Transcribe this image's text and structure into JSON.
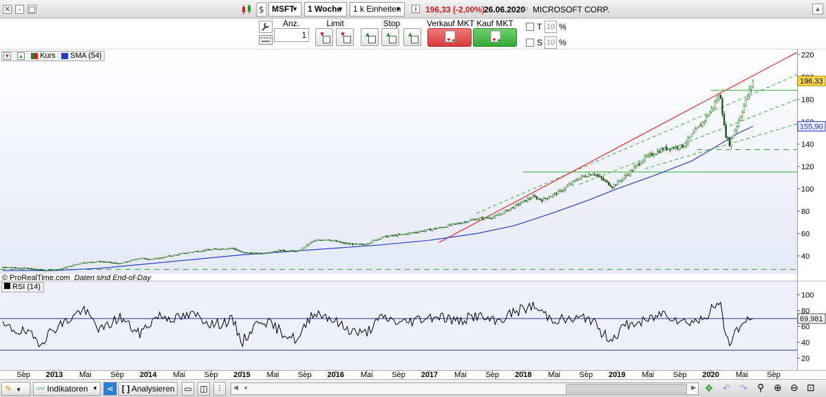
{
  "toolbar": {
    "symbol": "MSFT",
    "timeframe": "1 Woche",
    "units": "1 k Einheiten",
    "info_icon": "info-icon",
    "price_change": "196,33 (-2,00%)",
    "date": "26.06.2020",
    "instrument_name": "MICROSOFT CORP."
  },
  "order_panel": {
    "qty_label": "Anz.",
    "qty_value": "1",
    "limit_label": "Limit",
    "stop_label": "Stop",
    "sell_label": "Verkauf MKT",
    "buy_label": "Kauf MKT",
    "t_label": "T",
    "t_value": "10",
    "t_unit": "%",
    "s_label": "S",
    "s_value": "10",
    "s_unit": "%"
  },
  "legend": {
    "price_label": "Kurs",
    "sma_label": "SMA (54)",
    "source_label": "© ProRealTime.com",
    "eod_label": "Daten sind End-of-Day",
    "rsi_label": "RSI (14)"
  },
  "colors": {
    "price": "#2e7d1e",
    "sma": "#2a3fc7",
    "trend": "#e53935",
    "support": "#33aa33",
    "rsi": "#000000",
    "rsi_band": "#2a3580",
    "panel_bg": "#eef1fb"
  },
  "chart_data": [
    {
      "type": "line",
      "title": "",
      "xlabel": "",
      "ylabel": "",
      "x_ticks": [
        "Sep",
        "2013",
        "Mai",
        "Sep",
        "2014",
        "Mai",
        "Sep",
        "2015",
        "Mai",
        "Sep",
        "2016",
        "Mai",
        "Sep",
        "2017",
        "Mai",
        "Sep",
        "2018",
        "Mai",
        "Sep",
        "2019",
        "Mai",
        "Sep",
        "2020",
        "Mai",
        "Sep"
      ],
      "y_ticks": [
        40,
        60,
        80,
        100,
        120,
        140,
        160,
        180,
        200,
        220
      ],
      "ylim": [
        24,
        222
      ],
      "xlim": [
        2012.42,
        2020.92
      ],
      "grid": false,
      "series": [
        {
          "name": "Kurs",
          "x": [
            2012.45,
            2012.7,
            2012.9,
            2013.05,
            2013.3,
            2013.5,
            2013.7,
            2013.9,
            2014.05,
            2014.3,
            2014.5,
            2014.7,
            2014.9,
            2015.0,
            2015.2,
            2015.4,
            2015.6,
            2015.75,
            2015.9,
            2016.1,
            2016.3,
            2016.5,
            2016.7,
            2016.9,
            2017.1,
            2017.3,
            2017.5,
            2017.7,
            2017.9,
            2018.1,
            2018.2,
            2018.4,
            2018.6,
            2018.75,
            2018.85,
            2018.95,
            2019.1,
            2019.3,
            2019.5,
            2019.7,
            2019.9,
            2020.0,
            2020.1,
            2020.15,
            2020.2,
            2020.3,
            2020.4,
            2020.45
          ],
          "values": [
            30,
            29,
            27,
            28,
            34,
            35,
            33,
            38,
            37,
            41,
            44,
            46,
            47,
            43,
            42,
            45,
            44,
            53,
            55,
            51,
            50,
            57,
            59,
            62,
            65,
            69,
            73,
            75,
            84,
            93,
            90,
            98,
            110,
            114,
            108,
            102,
            112,
            128,
            136,
            138,
            158,
            170,
            185,
            150,
            140,
            162,
            185,
            196.33
          ]
        },
        {
          "name": "SMA (54)",
          "x": [
            2012.45,
            2013.0,
            2013.5,
            2014.0,
            2014.5,
            2015.0,
            2015.5,
            2016.0,
            2016.5,
            2017.0,
            2017.5,
            2017.9,
            2018.3,
            2018.7,
            2019.0,
            2019.4,
            2019.8,
            2020.1,
            2020.3,
            2020.45
          ],
          "values": [
            27,
            27,
            29,
            33,
            37,
            41,
            44,
            47,
            50,
            54,
            60,
            67,
            78,
            90,
            100,
            112,
            125,
            140,
            150,
            155.9
          ]
        }
      ],
      "annotations": [
        {
          "label": "196,33",
          "y": 196.33
        },
        {
          "label": "155,90",
          "y": 155.9
        },
        {
          "kind": "horizontal",
          "y": 188
        },
        {
          "kind": "horizontal",
          "y": 115
        },
        {
          "kind": "horizontal",
          "y": 135
        },
        {
          "kind": "horizontal",
          "y": 28
        }
      ]
    },
    {
      "type": "line",
      "title": "",
      "y_ticks": [
        20,
        40,
        60,
        80,
        100
      ],
      "ylim": [
        10,
        110
      ],
      "series": [
        {
          "name": "RSI (14)",
          "x": [
            2012.45,
            2012.7,
            2012.85,
            2013.0,
            2013.15,
            2013.3,
            2013.5,
            2013.7,
            2013.9,
            2014.1,
            2014.3,
            2014.5,
            2014.7,
            2014.9,
            2015.0,
            2015.2,
            2015.4,
            2015.6,
            2015.75,
            2015.9,
            2016.1,
            2016.3,
            2016.5,
            2016.7,
            2016.9,
            2017.1,
            2017.3,
            2017.5,
            2017.7,
            2017.9,
            2018.1,
            2018.3,
            2018.5,
            2018.7,
            2018.85,
            2018.95,
            2019.1,
            2019.3,
            2019.5,
            2019.7,
            2019.9,
            2020.05,
            2020.1,
            2020.15,
            2020.2,
            2020.3,
            2020.45
          ],
          "values": [
            60,
            52,
            40,
            58,
            68,
            82,
            55,
            72,
            50,
            74,
            70,
            75,
            62,
            68,
            40,
            70,
            55,
            42,
            78,
            74,
            58,
            50,
            72,
            64,
            70,
            74,
            66,
            74,
            65,
            78,
            86,
            70,
            68,
            72,
            50,
            45,
            62,
            66,
            78,
            66,
            68,
            86,
            88,
            55,
            40,
            60,
            69.98
          ]
        }
      ],
      "annotations": [
        {
          "label": "69,981",
          "y": 69.98
        },
        {
          "kind": "band",
          "y": 70
        },
        {
          "kind": "band",
          "y": 30
        }
      ]
    }
  ],
  "bottom_bar": {
    "indicators_label": "Indikatoren",
    "analyses_label": "Analysieren"
  }
}
